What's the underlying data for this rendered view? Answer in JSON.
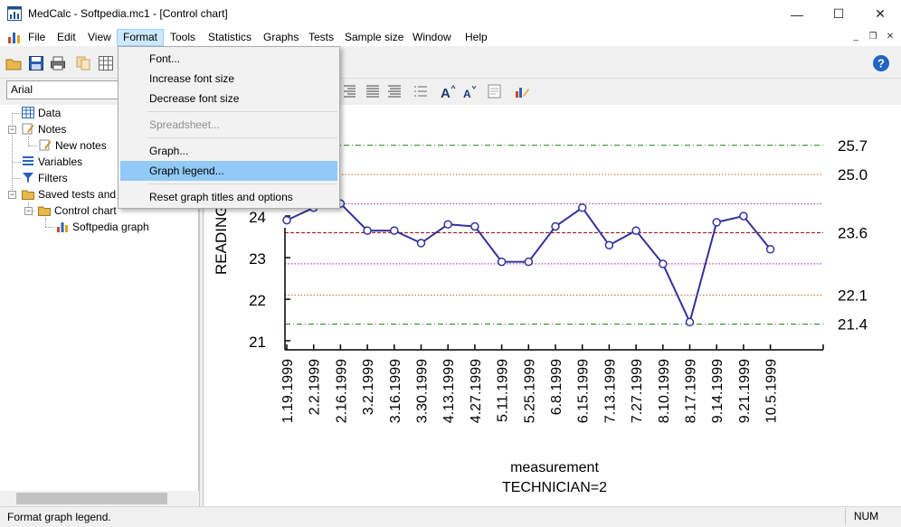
{
  "window": {
    "title": "MedCalc - Softpedia.mc1 - [Control chart]",
    "minimize": "—",
    "maximize": "☐",
    "close": "✕"
  },
  "menubar": {
    "items": [
      "File",
      "Edit",
      "View",
      "Format",
      "Tools",
      "Statistics",
      "Graphs",
      "Tests",
      "Sample size",
      "Window",
      "Help"
    ],
    "active": "Format",
    "mdi_minimize": "_",
    "mdi_restore": "❐",
    "mdi_close": "✕"
  },
  "toolbar": {
    "font_name": "Arial",
    "help_icon": "?"
  },
  "format_menu": {
    "items": [
      {
        "label": "Font...",
        "state": "normal"
      },
      {
        "label": "Increase font size",
        "state": "normal"
      },
      {
        "label": "Decrease font size",
        "state": "normal"
      },
      {
        "label": "Spreadsheet...",
        "state": "disabled"
      },
      {
        "label": "Graph...",
        "state": "normal"
      },
      {
        "label": "Graph legend...",
        "state": "hover"
      },
      {
        "label": "Reset graph titles and options",
        "state": "normal"
      }
    ]
  },
  "tree": {
    "data": "Data",
    "notes": "Notes",
    "new_notes": "New notes",
    "variables": "Variables",
    "filters": "Filters",
    "saved_tests": "Saved tests and g",
    "control_chart": "Control chart",
    "softpedia_graph": "Softpedia graph"
  },
  "status": {
    "message": "Format graph legend.",
    "num": "NUM"
  },
  "colors": {
    "series": "#33339a",
    "ucl_2": "#1a7f1a",
    "limit_1": "#c86414",
    "center": "#8b0000",
    "limit_2": "#a020a0",
    "accent_menu_hover": "#91c9f7"
  },
  "chart_data": {
    "type": "line",
    "ylabel": "READING",
    "xlabel": "measurement",
    "subtitle": "TECHNICIAN=2",
    "y_ticks": [
      21,
      22,
      23,
      24
    ],
    "ylim": [
      20.8,
      25.9
    ],
    "x": [
      "1.19.1999",
      "2.2.1999",
      "2.16.1999",
      "3.2.1999",
      "3.16.1999",
      "3.30.1999",
      "4.13.1999",
      "4.27.1999",
      "5.11.1999",
      "5.25.1999",
      "6.8.1999",
      "6.15.1999",
      "7.13.1999",
      "7.27.1999",
      "8.10.1999",
      "8.17.1999",
      "9.14.1999",
      "9.21.1999",
      "10.5.1999"
    ],
    "values": [
      23.9,
      24.2,
      24.3,
      23.65,
      23.65,
      23.35,
      23.8,
      23.75,
      22.9,
      22.9,
      23.75,
      24.2,
      23.3,
      23.65,
      22.85,
      21.45,
      23.85,
      24.0,
      23.2
    ],
    "reference_lines": [
      {
        "value": 25.7,
        "label": "25.7",
        "style": "dashdot",
        "color": "#1a7f1a"
      },
      {
        "value": 25.0,
        "label": "25.0",
        "style": "dotted",
        "color": "#c86414"
      },
      {
        "value": 24.3,
        "label": "",
        "style": "dotted",
        "color": "#a020a0"
      },
      {
        "value": 23.6,
        "label": "23.6",
        "style": "dashed",
        "color": "#8b0000"
      },
      {
        "value": 22.85,
        "label": "",
        "style": "dotted",
        "color": "#a020a0"
      },
      {
        "value": 22.1,
        "label": "22.1",
        "style": "dotted",
        "color": "#c86414"
      },
      {
        "value": 21.4,
        "label": "21.4",
        "style": "dashdot",
        "color": "#1a7f1a"
      }
    ]
  }
}
